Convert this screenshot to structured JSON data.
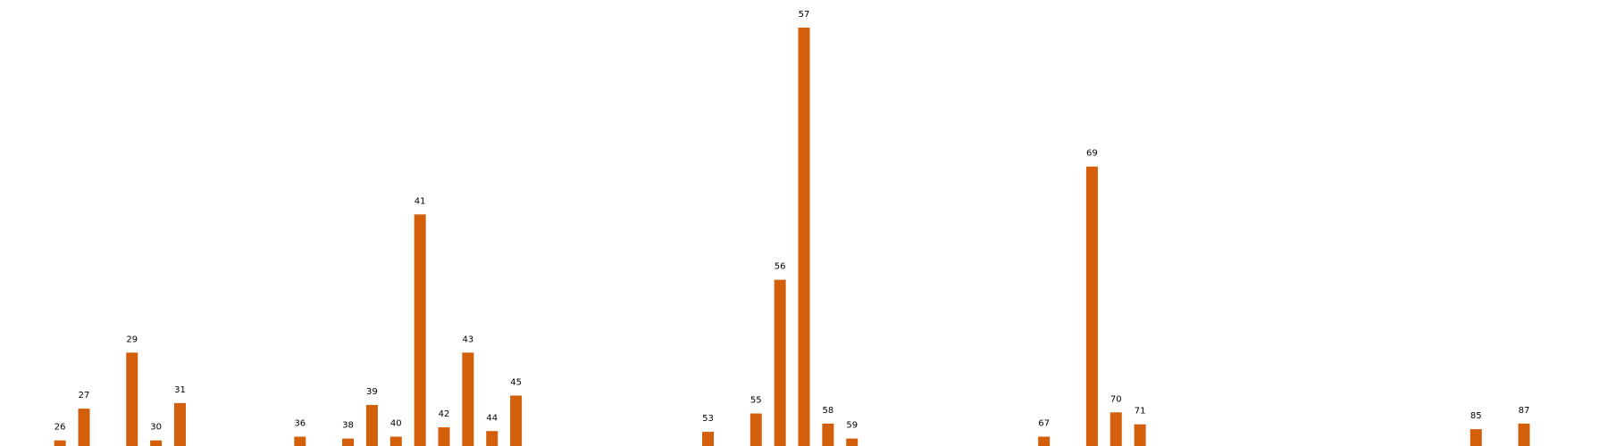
{
  "chart_data": {
    "type": "bar",
    "title": "",
    "xlabel": "",
    "ylabel": "",
    "grid": false,
    "axes_visible": false,
    "bar_color": "#D35F0A",
    "label_color": "#000000",
    "categories": [
      "26",
      "27",
      "29",
      "30",
      "31",
      "36",
      "38",
      "39",
      "40",
      "41",
      "42",
      "43",
      "44",
      "45",
      "53",
      "55",
      "56",
      "57",
      "58",
      "59",
      "67",
      "69",
      "70",
      "71",
      "85",
      "87"
    ],
    "x": [
      26,
      27,
      29,
      30,
      31,
      36,
      38,
      39,
      40,
      41,
      42,
      43,
      44,
      45,
      53,
      55,
      56,
      57,
      58,
      59,
      67,
      69,
      70,
      71,
      85,
      87
    ],
    "values": [
      1.5,
      10,
      25,
      1.5,
      11.5,
      2.5,
      2,
      11,
      2.5,
      62,
      5,
      25,
      4,
      13.5,
      3.8,
      8.7,
      44.5,
      112,
      6,
      2,
      2.5,
      74.8,
      9,
      5.8,
      4.5,
      6
    ],
    "xlim": [
      23.5,
      90.5
    ],
    "ylim": [
      0,
      117
    ]
  }
}
